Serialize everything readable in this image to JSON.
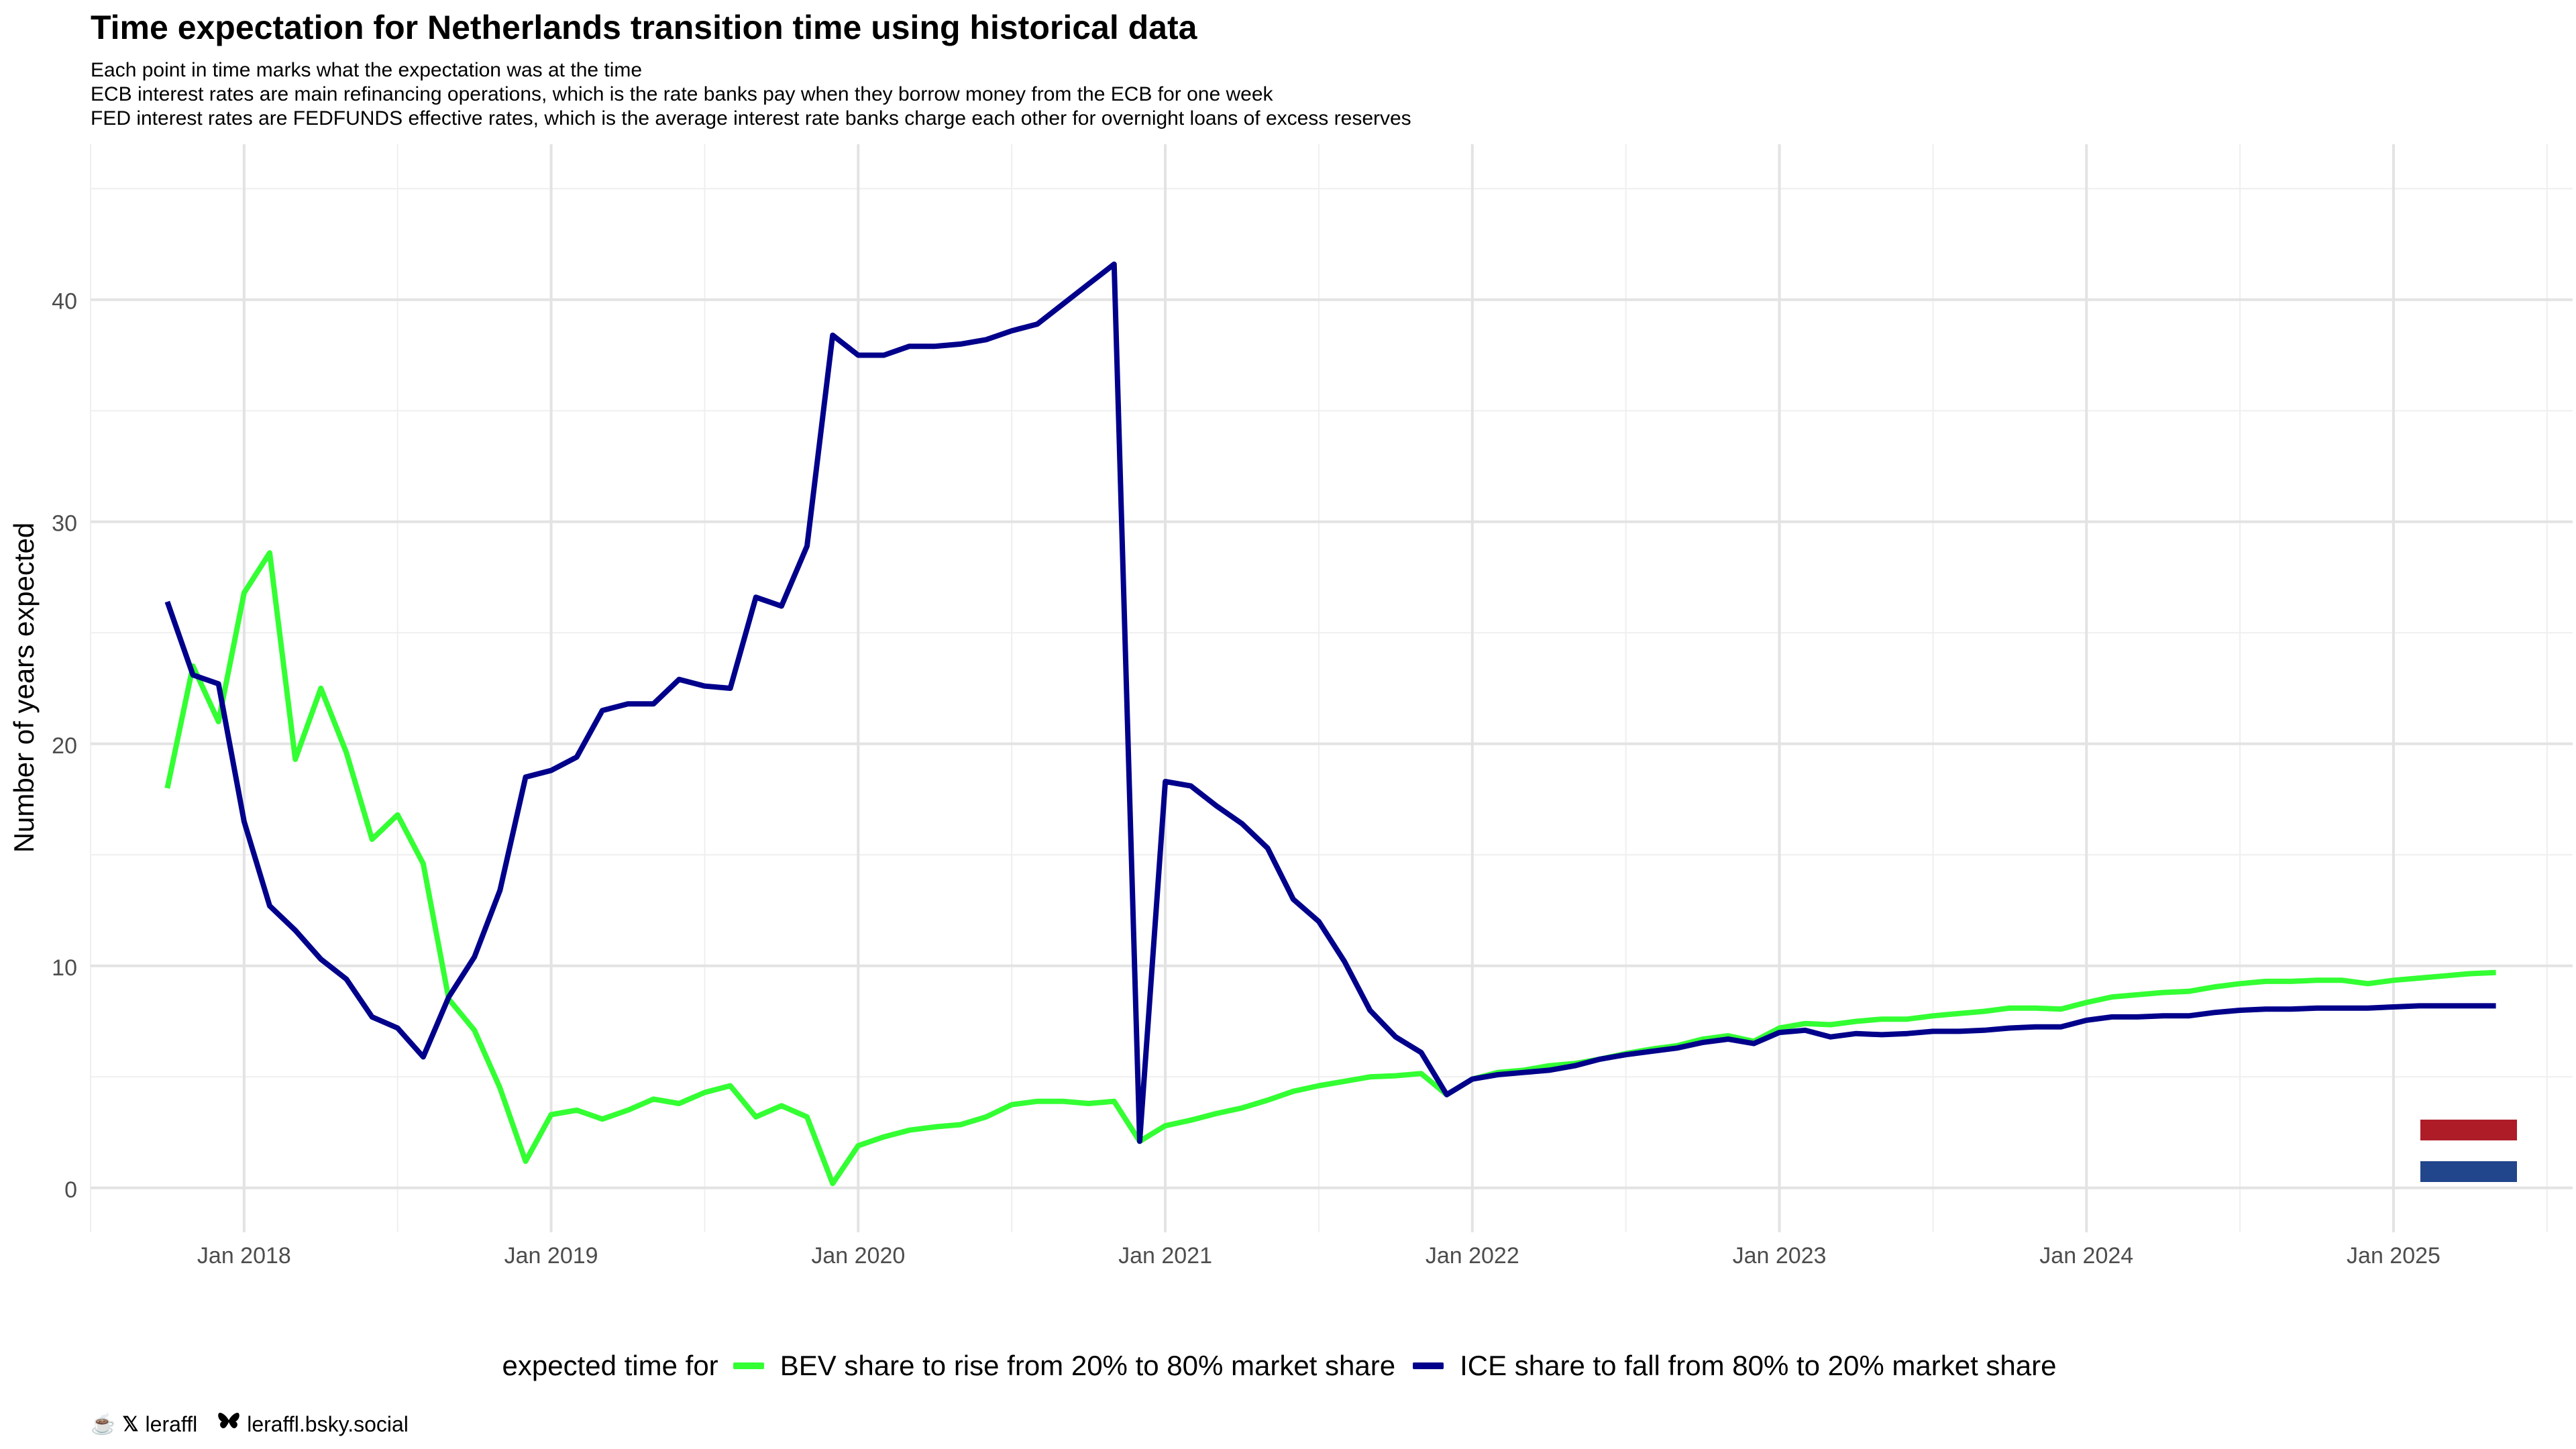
{
  "title": "Time expectation for Netherlands transition time using historical data",
  "subtitles": [
    "Each point in time marks what the expectation was at the time",
    "ECB interest rates are main refinancing operations, which is the rate banks pay when they borrow money from the ECB for one week",
    "FED interest rates are FEDFUNDS effective rates, which is the average interest rate banks charge each other for overnight loans of excess reserves"
  ],
  "legend": {
    "title": "expected time for",
    "items": [
      {
        "label": "BEV share to rise from 20% to 80% market share",
        "color": "#33ff33"
      },
      {
        "label": "ICE share to fall from 80% to 20% market share",
        "color": "#00008b"
      }
    ]
  },
  "footer": {
    "icons": [
      "coffee-icon",
      "x-logo-icon",
      "butterfly-icon"
    ],
    "handle": "leraffl",
    "bluesky": "leraffl.bsky.social"
  },
  "flag_colors": {
    "red": "#ae1c28",
    "white": "#ffffff",
    "blue": "#21468b"
  },
  "chart_data": {
    "type": "line",
    "title": "Time expectation for Netherlands transition time using historical data",
    "xlabel": "",
    "ylabel": "Number of years expected",
    "x_ticks": [
      "Jan 2018",
      "Jan 2019",
      "Jan 2020",
      "Jan 2021",
      "Jan 2022",
      "Jan 2023",
      "Jan 2024",
      "Jan 2025"
    ],
    "y_ticks": [
      0,
      10,
      20,
      30,
      40
    ],
    "xlim": [
      "2017-07-01",
      "2025-08-01"
    ],
    "ylim": [
      -2,
      47
    ],
    "grid": true,
    "legend_position": "bottom",
    "x": [
      "2017-10",
      "2017-11",
      "2017-12",
      "2018-01",
      "2018-02",
      "2018-03",
      "2018-04",
      "2018-05",
      "2018-06",
      "2018-07",
      "2018-08",
      "2018-09",
      "2018-10",
      "2018-11",
      "2018-12",
      "2019-01",
      "2019-02",
      "2019-03",
      "2019-04",
      "2019-05",
      "2019-06",
      "2019-07",
      "2019-08",
      "2019-09",
      "2019-10",
      "2019-11",
      "2019-12",
      "2020-01",
      "2020-02",
      "2020-03",
      "2020-04",
      "2020-05",
      "2020-06",
      "2020-07",
      "2020-08",
      "2020-09",
      "2020-10",
      "2020-11",
      "2020-12",
      "2021-01",
      "2021-02",
      "2021-03",
      "2021-04",
      "2021-05",
      "2021-06",
      "2021-07",
      "2021-08",
      "2021-09",
      "2021-10",
      "2021-11",
      "2021-12",
      "2022-01",
      "2022-02",
      "2022-03",
      "2022-04",
      "2022-05",
      "2022-06",
      "2022-07",
      "2022-08",
      "2022-09",
      "2022-10",
      "2022-11",
      "2022-12",
      "2023-01",
      "2023-02",
      "2023-03",
      "2023-04",
      "2023-05",
      "2023-06",
      "2023-07",
      "2023-08",
      "2023-09",
      "2023-10",
      "2023-11",
      "2023-12",
      "2024-01",
      "2024-02",
      "2024-03",
      "2024-04",
      "2024-05",
      "2024-06",
      "2024-07",
      "2024-08",
      "2024-09",
      "2024-10",
      "2024-11",
      "2024-12",
      "2025-01",
      "2025-02",
      "2025-03",
      "2025-04",
      "2025-05"
    ],
    "series": [
      {
        "name": "BEV share to rise from 20% to 80% market share",
        "color": "#33ff33",
        "values": [
          18,
          23.5,
          21,
          26.8,
          28.6,
          19.3,
          22.5,
          19.6,
          15.7,
          16.8,
          14.6,
          8.5,
          7.1,
          4.5,
          1.2,
          3.3,
          3.5,
          3.1,
          3.5,
          4,
          3.8,
          4.3,
          4.6,
          3.2,
          3.7,
          3.2,
          0.2,
          1.9,
          2.3,
          2.6,
          2.75,
          2.85,
          3.2,
          3.75,
          3.9,
          3.9,
          3.8,
          3.9,
          2.1,
          2.8,
          3.05,
          3.35,
          3.6,
          3.95,
          4.35,
          4.6,
          4.8,
          5,
          5.05,
          5.15,
          4.2,
          4.9,
          5.2,
          5.3,
          5.5,
          5.6,
          5.8,
          6.05,
          6.25,
          6.4,
          6.7,
          6.85,
          6.6,
          7.2,
          7.4,
          7.35,
          7.5,
          7.6,
          7.6,
          7.75,
          7.85,
          7.95,
          8.1,
          8.1,
          8.05,
          8.35,
          8.6,
          8.7,
          8.8,
          8.85,
          9.05,
          9.2,
          9.3,
          9.3,
          9.35,
          9.35,
          9.2,
          9.35,
          9.45,
          9.55,
          9.65,
          9.7
        ]
      },
      {
        "name": "ICE share to fall from 80% to 20% market share",
        "color": "#00008b",
        "values": [
          26.4,
          23.1,
          22.7,
          16.5,
          12.7,
          11.6,
          10.3,
          9.4,
          7.7,
          7.2,
          5.9,
          8.6,
          10.4,
          13.4,
          18.5,
          18.8,
          19.4,
          21.5,
          21.8,
          21.8,
          22.9,
          22.6,
          22.5,
          26.6,
          26.2,
          28.9,
          38.4,
          37.5,
          37.5,
          37.9,
          37.9,
          38,
          38.2,
          38.6,
          38.9,
          39.8,
          40.7,
          41.6,
          2.1,
          18.3,
          18.1,
          17.2,
          16.4,
          15.3,
          13,
          12,
          10.2,
          8,
          6.8,
          6.1,
          4.2,
          4.9,
          5.1,
          5.2,
          5.3,
          5.5,
          5.8,
          6,
          6.15,
          6.3,
          6.55,
          6.7,
          6.5,
          7,
          7.1,
          6.8,
          6.95,
          6.9,
          6.95,
          7.05,
          7.05,
          7.1,
          7.2,
          7.25,
          7.25,
          7.55,
          7.7,
          7.7,
          7.75,
          7.75,
          7.9,
          8,
          8.05,
          8.05,
          8.1,
          8.1,
          8.1,
          8.15,
          8.2,
          8.2,
          8.2,
          8.2
        ]
      }
    ]
  }
}
